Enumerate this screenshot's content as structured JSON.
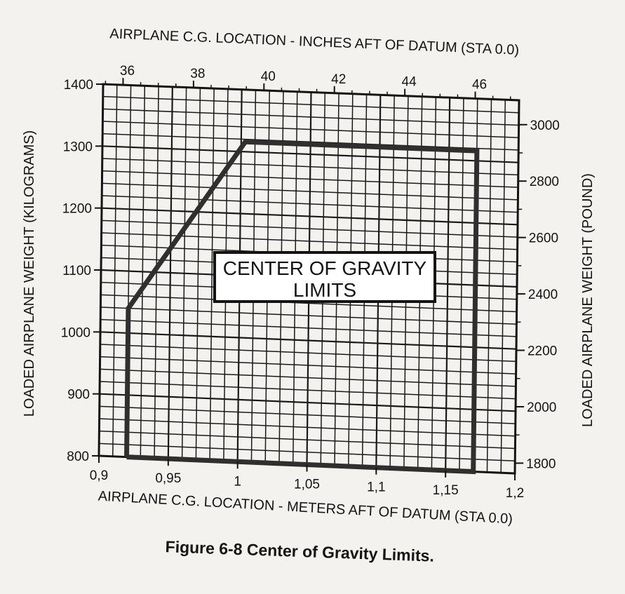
{
  "chart_data": {
    "type": "line",
    "title": "Figure 6-8 Center of Gravity Limits.",
    "annotation": [
      "CENTER OF GRAVITY",
      "LIMITS"
    ],
    "top_axis": {
      "label": "AIRPLANE C.G. LOCATION - INCHES AFT OF DATUM (STA 0.0)",
      "ticks": [
        "36",
        "38",
        "40",
        "42",
        "44",
        "46"
      ],
      "tick_values": [
        36,
        38,
        40,
        42,
        44,
        46
      ]
    },
    "bottom_axis": {
      "label": "AIRPLANE C.G. LOCATION - METERS AFT OF DATUM (STA 0.0)",
      "range": [
        0.9,
        1.2
      ],
      "ticks": [
        "0,9",
        "0,95",
        "1",
        "1,05",
        "1,1",
        "1,15",
        "1,2"
      ],
      "tick_values": [
        0.9,
        0.95,
        1.0,
        1.05,
        1.1,
        1.15,
        1.2
      ]
    },
    "left_axis": {
      "label": "LOADED AIRPLANE WEIGHT (KILOGRAMS)",
      "range": [
        800,
        1400
      ],
      "ticks": [
        "800",
        "900",
        "1000",
        "1100",
        "1200",
        "1300",
        "1400"
      ],
      "tick_values": [
        800,
        900,
        1000,
        1100,
        1200,
        1300,
        1400
      ]
    },
    "right_axis": {
      "label": "LOADED AIRPLANE WEIGHT (POUND)",
      "ticks": [
        "1800",
        "2000",
        "2200",
        "2400",
        "2600",
        "2800",
        "3000"
      ],
      "tick_values": [
        1800,
        2000,
        2200,
        2400,
        2600,
        2800,
        3000
      ]
    },
    "grid": true,
    "series": [
      {
        "x_meters": [
          0.92,
          0.92,
          1.003,
          1.17,
          1.17,
          0.92
        ],
        "y_kg": [
          800,
          1040,
          1316,
          1316,
          800,
          800
        ]
      }
    ],
    "colors": {
      "background": "#f4f2ee",
      "ink": "#141414",
      "envelope": "#2f2f2f",
      "grid": "#1a1a1a"
    }
  }
}
